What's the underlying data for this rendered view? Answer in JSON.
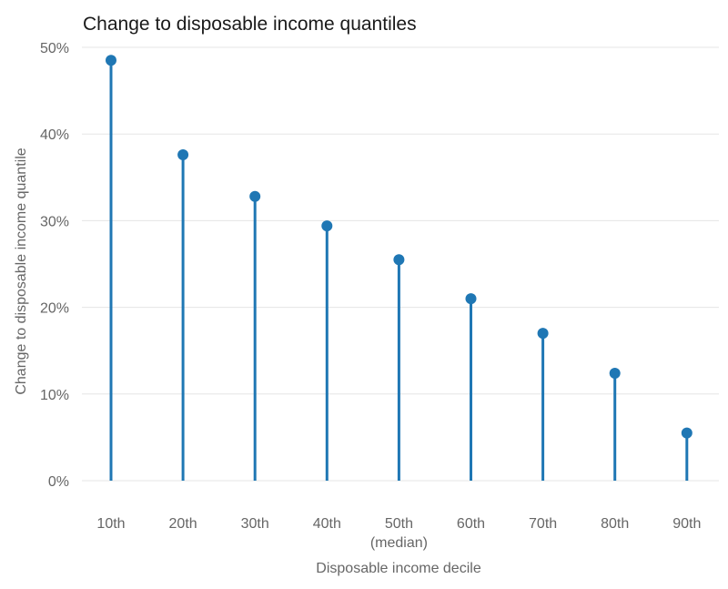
{
  "chart_data": {
    "type": "lollipop",
    "title": "Change to disposable income quantiles",
    "xlabel": "Disposable income decile",
    "ylabel": "Change to disposable income quantile",
    "categories": [
      "10th",
      "20th",
      "30th",
      "40th",
      "50th\n(median)",
      "60th",
      "70th",
      "80th",
      "90th"
    ],
    "values": [
      48.5,
      37.6,
      32.8,
      29.4,
      25.5,
      21.0,
      17.0,
      12.4,
      5.5
    ],
    "y_ticks": [
      "0%",
      "10%",
      "20%",
      "30%",
      "40%",
      "50%"
    ],
    "ylim": [
      0,
      50
    ],
    "y_unit": "%",
    "grid": true,
    "color": "#1f77b4"
  }
}
